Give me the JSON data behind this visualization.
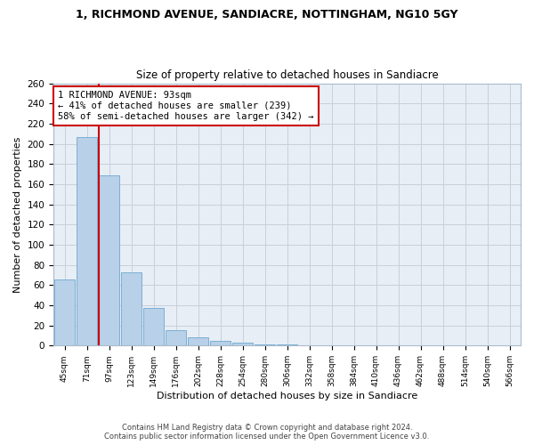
{
  "title": "1, RICHMOND AVENUE, SANDIACRE, NOTTINGHAM, NG10 5GY",
  "subtitle": "Size of property relative to detached houses in Sandiacre",
  "xlabel": "Distribution of detached houses by size in Sandiacre",
  "ylabel": "Number of detached properties",
  "bar_labels": [
    "45sqm",
    "71sqm",
    "97sqm",
    "123sqm",
    "149sqm",
    "176sqm",
    "202sqm",
    "228sqm",
    "254sqm",
    "280sqm",
    "306sqm",
    "332sqm",
    "358sqm",
    "384sqm",
    "410sqm",
    "436sqm",
    "462sqm",
    "488sqm",
    "514sqm",
    "540sqm",
    "566sqm"
  ],
  "bar_values": [
    66,
    207,
    169,
    73,
    37,
    15,
    8,
    5,
    3,
    1,
    1,
    0,
    0,
    0,
    0,
    0,
    0,
    0,
    0,
    0,
    0
  ],
  "bar_color": "#b8d0e8",
  "bar_edgecolor": "#7aafd4",
  "annotation_line1": "1 RICHMOND AVENUE: 93sqm",
  "annotation_line2": "← 41% of detached houses are smaller (239)",
  "annotation_line3": "58% of semi-detached houses are larger (342) →",
  "vline_color": "#cc0000",
  "annotation_box_edgecolor": "#cc0000",
  "ylim": [
    0,
    260
  ],
  "yticks": [
    0,
    20,
    40,
    60,
    80,
    100,
    120,
    140,
    160,
    180,
    200,
    220,
    240,
    260
  ],
  "grid_color": "#c8d0dc",
  "background_color": "#e8eef5",
  "footer_line1": "Contains HM Land Registry data © Crown copyright and database right 2024.",
  "footer_line2": "Contains public sector information licensed under the Open Government Licence v3.0."
}
